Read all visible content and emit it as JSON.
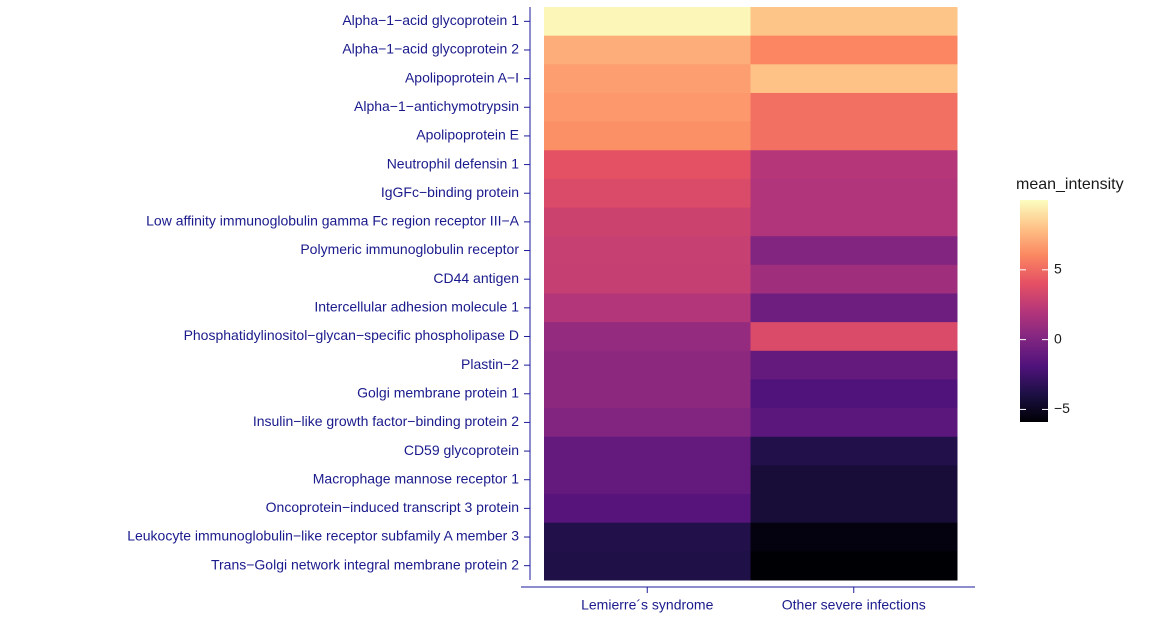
{
  "chart_data": {
    "type": "heatmap",
    "columns": [
      "Lemierre´s syndrome",
      "Other severe infections"
    ],
    "rows": [
      "Alpha−1−acid glycoprotein 1",
      "Alpha−1−acid glycoprotein 2",
      "Apolipoprotein A−I",
      "Alpha−1−antichymotrypsin",
      "Apolipoprotein E",
      "Neutrophil defensin 1",
      "IgGFc−binding protein",
      "Low affinity immunoglobulin gamma Fc region receptor III−A",
      "Polymeric immunoglobulin receptor",
      "CD44 antigen",
      "Intercellular adhesion molecule 1",
      "Phosphatidylinositol−glycan−specific phospholipase D",
      "Plastin−2",
      "Golgi membrane protein 1",
      "Insulin−like growth factor−binding protein 2",
      "CD59 glycoprotein",
      "Macrophage mannose receptor 1",
      "Oncoprotein−induced transcript 3 protein",
      "Leukocyte immunoglobulin−like receptor subfamily A member 3",
      "Trans−Golgi network integral membrane protein 2"
    ],
    "values": [
      [
        9.8,
        8.1
      ],
      [
        7.3,
        6.0
      ],
      [
        6.8,
        8.0
      ],
      [
        6.6,
        5.2
      ],
      [
        6.3,
        5.2
      ],
      [
        4.0,
        2.1
      ],
      [
        3.6,
        1.9
      ],
      [
        3.0,
        1.9
      ],
      [
        2.8,
        0.1
      ],
      [
        2.7,
        1.2
      ],
      [
        2.0,
        -0.7
      ],
      [
        0.8,
        3.6
      ],
      [
        0.5,
        -1.1
      ],
      [
        0.5,
        -1.9
      ],
      [
        0.1,
        -1.4
      ],
      [
        -1.1,
        -3.7
      ],
      [
        -1.1,
        -4.3
      ],
      [
        -1.6,
        -4.3
      ],
      [
        -3.7,
        -5.6
      ],
      [
        -3.8,
        -5.9
      ]
    ],
    "colormap": "magma",
    "legend_title": "mean_intensity",
    "zlim": [
      -5.9,
      10
    ],
    "zticks": [
      {
        "value": -5,
        "label": "−5"
      },
      0,
      5
    ]
  }
}
